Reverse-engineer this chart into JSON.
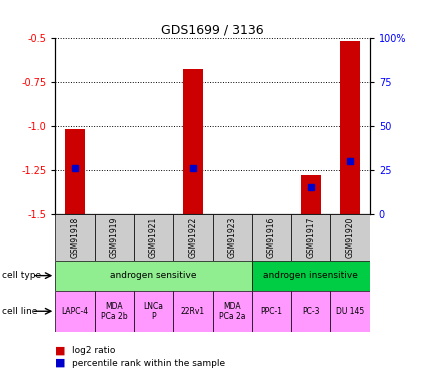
{
  "title": "GDS1699 / 3136",
  "samples": [
    "GSM91918",
    "GSM91919",
    "GSM91921",
    "GSM91922",
    "GSM91923",
    "GSM91916",
    "GSM91917",
    "GSM91920"
  ],
  "log2_ratio": [
    -1.02,
    0.0,
    0.0,
    -0.68,
    0.0,
    0.0,
    -1.28,
    -0.52
  ],
  "percentile_rank": [
    26,
    0,
    0,
    26,
    0,
    0,
    15,
    30
  ],
  "percentile_rank_show": [
    true,
    false,
    false,
    true,
    false,
    false,
    true,
    true
  ],
  "ylim_left": [
    -1.5,
    -0.5
  ],
  "ylim_right": [
    0,
    100
  ],
  "yticks_left": [
    -1.5,
    -1.25,
    -1.0,
    -0.75,
    -0.5
  ],
  "yticks_right": [
    0,
    25,
    50,
    75,
    100
  ],
  "cell_type_groups": [
    {
      "label": "androgen sensitive",
      "start": 0,
      "end": 5,
      "color": "#90EE90"
    },
    {
      "label": "androgen insensitive",
      "start": 5,
      "end": 8,
      "color": "#00CC44"
    }
  ],
  "cell_lines": [
    "LAPC-4",
    "MDA\nPCa 2b",
    "LNCa\nP",
    "22Rv1",
    "MDA\nPCa 2a",
    "PPC-1",
    "PC-3",
    "DU 145"
  ],
  "cell_line_color": "#FF99FF",
  "sample_label_color": "#CCCCCC",
  "bar_color": "#CC0000",
  "percentile_color": "#0000CC",
  "bar_width": 0.5,
  "legend_red": "log2 ratio",
  "legend_blue": "percentile rank within the sample"
}
